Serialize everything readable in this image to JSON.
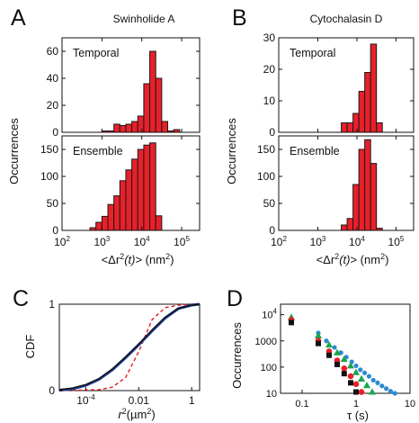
{
  "panel_labels": {
    "A": "A",
    "B": "B",
    "C": "C",
    "D": "D"
  },
  "colors": {
    "bar_fill": "#e8202a",
    "bar_stroke": "#1a1a1a",
    "cdf_blue": "#1f3c8f",
    "cdf_red": "#e01b22",
    "sq_black": "#111111",
    "circ_red": "#e8202a",
    "tri_green": "#19a64a",
    "dot_blue": "#2a8ad0"
  },
  "chart_data": [
    {
      "id": "A",
      "type": "bar",
      "title": "Swinholide A",
      "xlabel_pre": "<Δr",
      "xlabel_sup": "2",
      "xlabel_t": "(t)",
      "xlabel_post": "> (nm",
      "xlabel_sup2": "2",
      "xlabel_end": ")",
      "ylabel": "Occurrences",
      "xscale": "log",
      "xlim_log10": [
        2,
        5.45
      ],
      "x_ticks": [
        {
          "base": "10",
          "exp": "2",
          "v": 2
        },
        {
          "base": "10",
          "exp": "3",
          "v": 3
        },
        {
          "base": "10",
          "exp": "4",
          "v": 4
        },
        {
          "base": "10",
          "exp": "5",
          "v": 5
        }
      ],
      "panels": [
        {
          "name": "Temporal",
          "ylim": [
            0,
            70
          ],
          "y_ticks": [
            0,
            20,
            40,
            60
          ],
          "log10_bin_edges": [
            3.0,
            3.15,
            3.3,
            3.45,
            3.6,
            3.75,
            3.9,
            4.05,
            4.2,
            4.35,
            4.5,
            4.65,
            4.8,
            4.95
          ],
          "counts": [
            1,
            1,
            6,
            5,
            6,
            8,
            12,
            36,
            60,
            40,
            8,
            1,
            2
          ]
        },
        {
          "name": "Ensemble",
          "ylim": [
            0,
            175
          ],
          "y_ticks": [
            0,
            50,
            100,
            150
          ],
          "log10_bin_edges": [
            2.7,
            2.85,
            3.0,
            3.15,
            3.3,
            3.45,
            3.6,
            3.75,
            3.9,
            4.05,
            4.2,
            4.35,
            4.5
          ],
          "counts": [
            5,
            15,
            26,
            48,
            64,
            92,
            112,
            132,
            150,
            158,
            162,
            27
          ]
        }
      ]
    },
    {
      "id": "B",
      "type": "bar",
      "title": "Cytochalasin D",
      "xlabel_pre": "<Δr",
      "xlabel_sup": "2",
      "xlabel_t": "(t)",
      "xlabel_post": "> (nm",
      "xlabel_sup2": "2",
      "xlabel_end": ")",
      "ylabel": "Occurrences",
      "xscale": "log",
      "xlim_log10": [
        2,
        5.45
      ],
      "x_ticks": [
        {
          "base": "10",
          "exp": "2",
          "v": 2
        },
        {
          "base": "10",
          "exp": "3",
          "v": 3
        },
        {
          "base": "10",
          "exp": "4",
          "v": 4
        },
        {
          "base": "10",
          "exp": "5",
          "v": 5
        }
      ],
      "panels": [
        {
          "name": "Temporal",
          "ylim": [
            0,
            30
          ],
          "y_ticks": [
            0,
            10,
            20,
            30
          ],
          "log10_bin_edges": [
            3.6,
            3.75,
            3.9,
            4.05,
            4.2,
            4.35,
            4.5,
            4.65
          ],
          "counts": [
            3,
            3,
            6,
            13,
            19,
            28,
            3
          ]
        },
        {
          "name": "Ensemble",
          "ylim": [
            0,
            175
          ],
          "y_ticks": [
            0,
            50,
            100,
            150
          ],
          "log10_bin_edges": [
            3.6,
            3.75,
            3.9,
            4.05,
            4.2,
            4.35,
            4.5,
            4.65
          ],
          "counts": [
            10,
            22,
            85,
            150,
            168,
            124,
            4
          ]
        }
      ]
    },
    {
      "id": "C",
      "type": "line",
      "ylabel": "CDF",
      "xlabel_pre": "r",
      "xlabel_sup": "2",
      "xlabel_post": "(µm",
      "xlabel_sup2": "2",
      "xlabel_end": ")",
      "xscale": "log",
      "xlim_log10": [
        -5,
        0.3
      ],
      "ylim": [
        0,
        1
      ],
      "x_ticks": [
        {
          "base": "10",
          "exp": "-4",
          "v": -4
        },
        {
          "label": "0.01",
          "v": -2
        },
        {
          "label": "1",
          "v": 0
        }
      ],
      "y_ticks": [
        0,
        1
      ],
      "series": [
        {
          "color_key": "cdf_red",
          "dash": true,
          "log10_x": [
            -5,
            -3.5,
            -3,
            -2.5,
            -2,
            -1.5,
            -1,
            -0.5,
            0,
            0.3
          ],
          "y": [
            0,
            0.01,
            0.04,
            0.15,
            0.45,
            0.82,
            0.96,
            0.99,
            1,
            1
          ]
        },
        {
          "color_key": "cdf_blue",
          "dash": false,
          "log10_x": [
            -5,
            -4.5,
            -4,
            -3.5,
            -3,
            -2.5,
            -2,
            -1.5,
            -1,
            -0.5,
            0,
            0.3
          ],
          "y": [
            0.005,
            0.02,
            0.06,
            0.13,
            0.24,
            0.38,
            0.53,
            0.69,
            0.84,
            0.95,
            0.99,
            1.0
          ]
        },
        {
          "color_key": "sq_black",
          "dash": false,
          "log10_x": [
            -5,
            -4.5,
            -4,
            -3.5,
            -3,
            -2.5,
            -2,
            -1.5,
            -1,
            -0.5,
            0,
            0.3
          ],
          "y": [
            0.01,
            0.03,
            0.07,
            0.14,
            0.25,
            0.39,
            0.54,
            0.7,
            0.85,
            0.95,
            0.99,
            1.0
          ]
        }
      ]
    },
    {
      "id": "D",
      "type": "scatter",
      "ylabel": "Occurrences",
      "xlabel": "τ (s)",
      "xscale": "log",
      "yscale": "log",
      "xlim_log10": [
        -1.4,
        1.0
      ],
      "ylim_log10": [
        1,
        4.4
      ],
      "x_ticks": [
        {
          "label": "0.1",
          "v": -1
        },
        {
          "label": "1",
          "v": 0
        },
        {
          "label": "10",
          "v": 1
        }
      ],
      "y_ticks": [
        {
          "label": "10",
          "v": 1
        },
        {
          "label": "100",
          "v": 2
        },
        {
          "label": "1000",
          "v": 3
        },
        {
          "base": "10",
          "exp": "4",
          "v": 4
        }
      ],
      "series": [
        {
          "marker": "circle-sm",
          "color_key": "dot_blue",
          "log10_x": [
            -1.2,
            -0.7,
            -0.55,
            -0.4,
            -0.28,
            -0.18,
            -0.08,
            0.0,
            0.08,
            0.16,
            0.24,
            0.32,
            0.4,
            0.48,
            0.56,
            0.64,
            0.72
          ],
          "log10_y": [
            3.85,
            3.3,
            3.0,
            2.75,
            2.55,
            2.38,
            2.2,
            2.05,
            1.9,
            1.78,
            1.65,
            1.5,
            1.4,
            1.28,
            1.18,
            1.08,
            1.0
          ]
        },
        {
          "marker": "triangle",
          "color_key": "tri_green",
          "log10_x": [
            -1.2,
            -0.7,
            -0.5,
            -0.35,
            -0.22,
            -0.1,
            0.0,
            0.1,
            0.2,
            0.3
          ],
          "log10_y": [
            3.9,
            3.2,
            2.85,
            2.55,
            2.3,
            2.05,
            1.8,
            1.55,
            1.3,
            1.05
          ]
        },
        {
          "marker": "circle",
          "color_key": "circ_red",
          "log10_x": [
            -1.2,
            -0.7,
            -0.5,
            -0.35,
            -0.22,
            -0.1,
            0.0,
            0.1
          ],
          "log10_y": [
            3.8,
            3.0,
            2.6,
            2.25,
            1.95,
            1.65,
            1.35,
            1.05
          ]
        },
        {
          "marker": "square",
          "color_key": "sq_black",
          "log10_x": [
            -1.2,
            -0.7,
            -0.5,
            -0.35,
            -0.22,
            -0.1,
            0.0
          ],
          "log10_y": [
            3.7,
            2.9,
            2.45,
            2.1,
            1.75,
            1.4,
            1.05
          ]
        }
      ]
    }
  ]
}
